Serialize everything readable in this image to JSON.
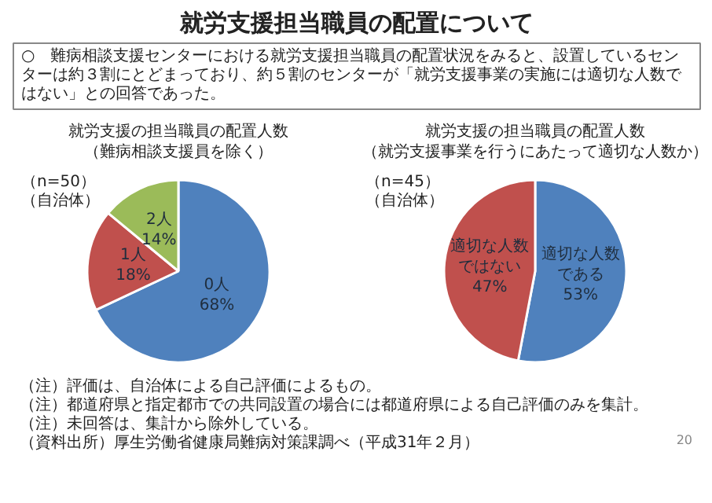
{
  "chart_data": [
    {
      "type": "pie",
      "title": "就労支援の担当職員の配置人数",
      "subtitle": "（難病相談支援員を除く）",
      "categories": [
        "0人",
        "1人",
        "2人"
      ],
      "values": [
        68,
        18,
        14
      ],
      "colors": [
        "#4f81bd",
        "#c0504d",
        "#9bbb59"
      ],
      "value_labels": [
        "68%",
        "18%",
        "14%"
      ],
      "annotations": [
        "就労支援担当職員の配置について",
        "○　難病相談支援センターにおける就労支援担当職員の配置状況をみると、設置しているセンターは約３割にとどまっており、約５割のセンターが「就労支援事業の実施には適切な人数ではない」との回答であった。",
        "（n=50）（自治体）"
      ]
    },
    {
      "type": "pie",
      "title": "就労支援の担当職員の配置人数",
      "subtitle": "（就労支援事業を行うにあたって適切な人数か）",
      "categories": [
        "適切な人数である",
        "適切な人数ではない"
      ],
      "values": [
        53,
        47
      ],
      "colors": [
        "#4f81bd",
        "#c0504d"
      ],
      "value_labels": [
        "53%",
        "47%"
      ],
      "annotations": [
        "（n=45）（自治体）",
        "（注）評価は、自治体による自己評価によるもの。",
        "（注）都道府県と指定都市での共同設置の場合には都道府県による自己評価のみを集計。",
        "（注）未回答は、集計から除外している。",
        "（資料出所）厚生労働省健康局難病対策課調べ（平成31年２月）",
        "20"
      ]
    }
  ]
}
